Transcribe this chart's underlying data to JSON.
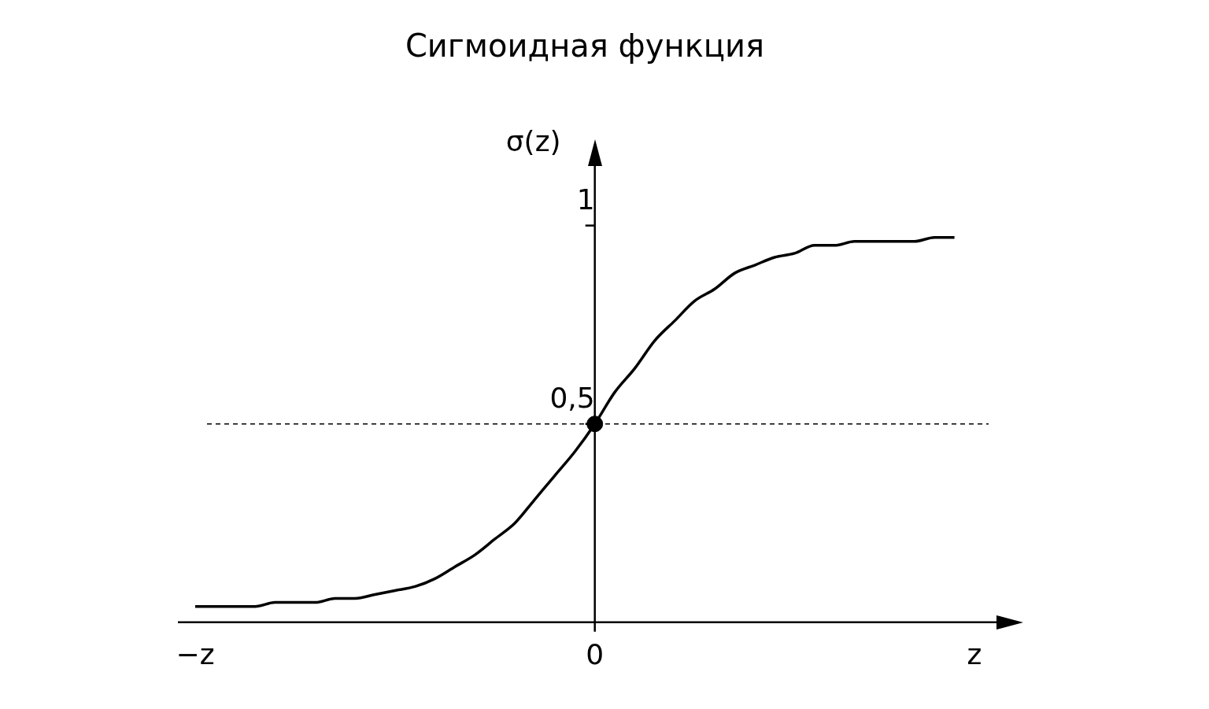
{
  "chart_data": {
    "type": "line",
    "title": "Сигмоидная функция",
    "ylabel": "σ(z)",
    "categories": [
      "−z",
      null,
      null,
      null,
      null,
      null,
      null,
      null,
      null,
      null,
      null,
      null,
      null,
      null,
      null,
      null,
      null,
      null,
      null,
      null,
      "0",
      null,
      null,
      null,
      null,
      null,
      null,
      null,
      null,
      null,
      null,
      null,
      null,
      null,
      null,
      null,
      null,
      null,
      null,
      "z"
    ],
    "series": [
      {
        "color": "#000000",
        "marker": "none",
        "line_style": "solid",
        "values": [
          0.04,
          0.04,
          0.04,
          0.04,
          0.05,
          0.05,
          0.05,
          0.06,
          0.06,
          0.07,
          0.08,
          0.09,
          0.11,
          0.14,
          0.17,
          0.21,
          0.25,
          0.31,
          0.37,
          0.43,
          0.5,
          0.58,
          0.64,
          0.71,
          0.76,
          0.81,
          0.84,
          0.88,
          0.9,
          0.92,
          0.93,
          0.95,
          0.95,
          0.96,
          0.96,
          0.96,
          0.96,
          0.97,
          0.97,
          null
        ]
      },
      {
        "type": "scatter",
        "color": "#000000",
        "marker": "circle",
        "x": [
          "0"
        ],
        "values": [
          0.5
        ]
      }
    ],
    "ylim": [
      0,
      1.15
    ],
    "yticks": [
      {
        "value": 0.5,
        "label": "0,5"
      },
      {
        "value": 1,
        "label": "1"
      }
    ],
    "ref_lines": [
      {
        "axis": "y",
        "value": 0.5,
        "line_style": "dashed",
        "color": "#000000"
      }
    ],
    "grid": false,
    "legend": false
  }
}
